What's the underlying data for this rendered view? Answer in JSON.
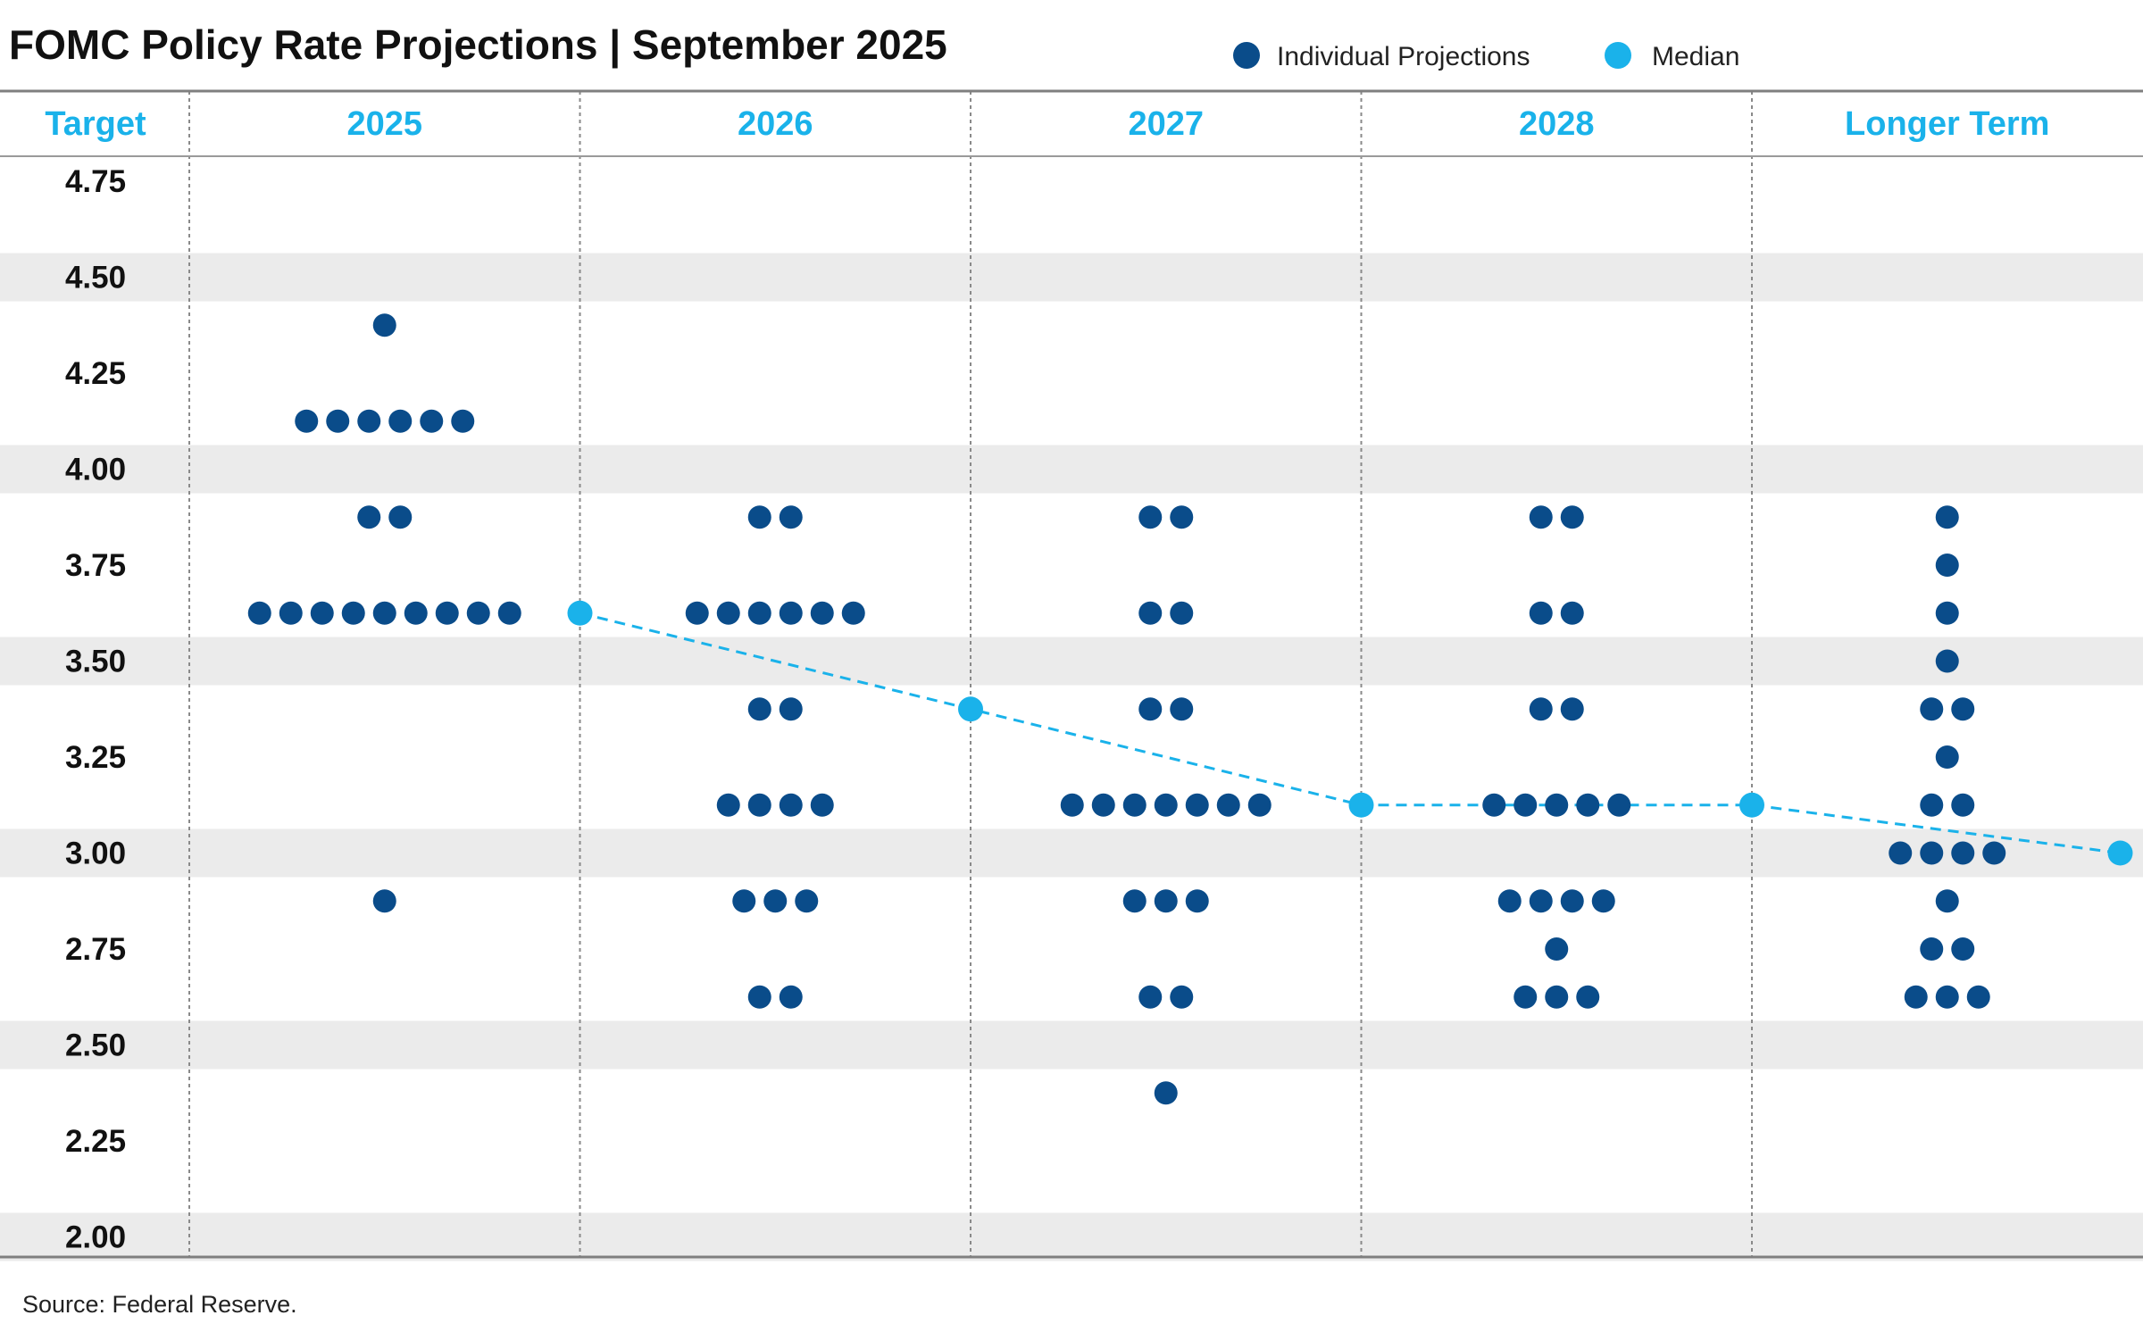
{
  "title": "FOMC Policy Rate Projections | September 2025",
  "source": "Source: Federal Reserve.",
  "colors": {
    "individual": "#0a4c8a",
    "median": "#1ab2ea",
    "header_text": "#1ab2ea",
    "band": "#ebebeb",
    "axis_line": "#7f7f7f"
  },
  "chart_data": {
    "type": "scatter",
    "title": "FOMC Policy Rate Projections | September 2025",
    "ylabel": "Target",
    "categories": [
      "2025",
      "2026",
      "2027",
      "2028",
      "Longer Term"
    ],
    "ylim": [
      2.0,
      4.75
    ],
    "yticks": [
      "4.75",
      "4.50",
      "4.25",
      "4.00",
      "3.75",
      "3.50",
      "3.25",
      "3.00",
      "2.75",
      "2.50",
      "2.25",
      "2.00"
    ],
    "legend": [
      {
        "key": "individual",
        "label": "Individual Projections"
      },
      {
        "key": "median",
        "label": "Median"
      }
    ],
    "series": [
      {
        "name": "Individual Projections",
        "columns": [
          {
            "category": "2025",
            "dots": [
              [
                4.375,
                1
              ],
              [
                4.125,
                6
              ],
              [
                3.875,
                2
              ],
              [
                3.625,
                9
              ],
              [
                2.875,
                1
              ]
            ]
          },
          {
            "category": "2026",
            "dots": [
              [
                3.875,
                2
              ],
              [
                3.625,
                6
              ],
              [
                3.375,
                2
              ],
              [
                3.125,
                4
              ],
              [
                2.875,
                3
              ],
              [
                2.625,
                2
              ]
            ]
          },
          {
            "category": "2027",
            "dots": [
              [
                3.875,
                2
              ],
              [
                3.625,
                2
              ],
              [
                3.375,
                2
              ],
              [
                3.125,
                7
              ],
              [
                2.875,
                3
              ],
              [
                2.625,
                2
              ],
              [
                2.375,
                1
              ]
            ]
          },
          {
            "category": "2028",
            "dots": [
              [
                3.875,
                2
              ],
              [
                3.625,
                2
              ],
              [
                3.375,
                2
              ],
              [
                3.125,
                5
              ],
              [
                2.875,
                4
              ],
              [
                2.75,
                1
              ],
              [
                2.625,
                3
              ]
            ]
          },
          {
            "category": "Longer Term",
            "dots": [
              [
                3.875,
                1
              ],
              [
                3.75,
                1
              ],
              [
                3.625,
                1
              ],
              [
                3.5,
                1
              ],
              [
                3.375,
                2
              ],
              [
                3.25,
                1
              ],
              [
                3.125,
                2
              ],
              [
                3.0,
                4
              ],
              [
                2.875,
                1
              ],
              [
                2.75,
                2
              ],
              [
                2.625,
                3
              ]
            ]
          }
        ]
      },
      {
        "name": "Median",
        "values": [
          3.625,
          3.375,
          3.125,
          3.125,
          3.0
        ]
      }
    ]
  }
}
